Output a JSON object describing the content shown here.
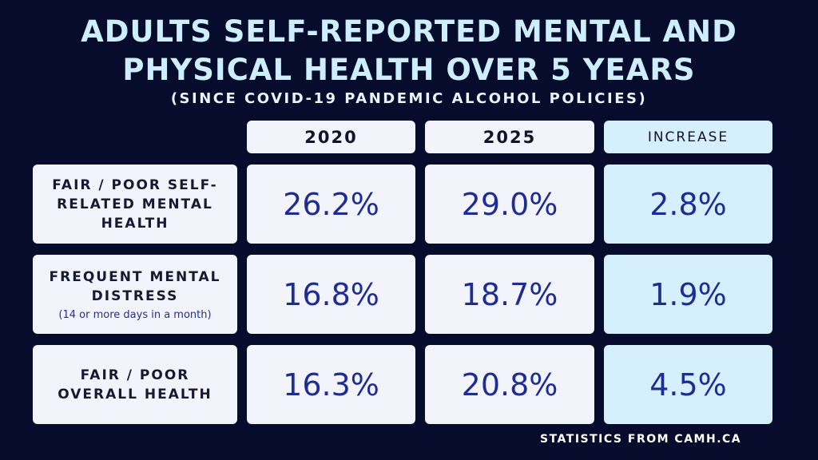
{
  "chart_data": {
    "type": "table",
    "title": [
      "ADULTS SELF-REPORTED MENTAL AND",
      "PHYSICAL HEALTH OVER 5 YEARS"
    ],
    "subtitle": "(SINCE COVID-19 PANDEMIC ALCOHOL POLICIES)",
    "columns": [
      "2020",
      "2025",
      "INCREASE"
    ],
    "rows": [
      {
        "label": "FAIR / POOR SELF-RELATED MENTAL HEALTH",
        "note": "",
        "values": [
          "26.2%",
          "29.0%",
          "2.8%"
        ]
      },
      {
        "label": "FREQUENT MENTAL DISTRESS",
        "note": "(14 or more days in a month)",
        "values": [
          "16.8%",
          "18.7%",
          "1.9%"
        ]
      },
      {
        "label": "FAIR / POOR OVERALL HEALTH",
        "note": "",
        "values": [
          "16.3%",
          "20.8%",
          "4.5%"
        ]
      }
    ],
    "source": "STATISTICS FROM CAMH.CA",
    "colors": {
      "background": "#070b2c",
      "title": "#cdeefe",
      "cell": "#f2f3fb",
      "increase_cell": "#d6effd",
      "value": "#1e2d93"
    }
  }
}
